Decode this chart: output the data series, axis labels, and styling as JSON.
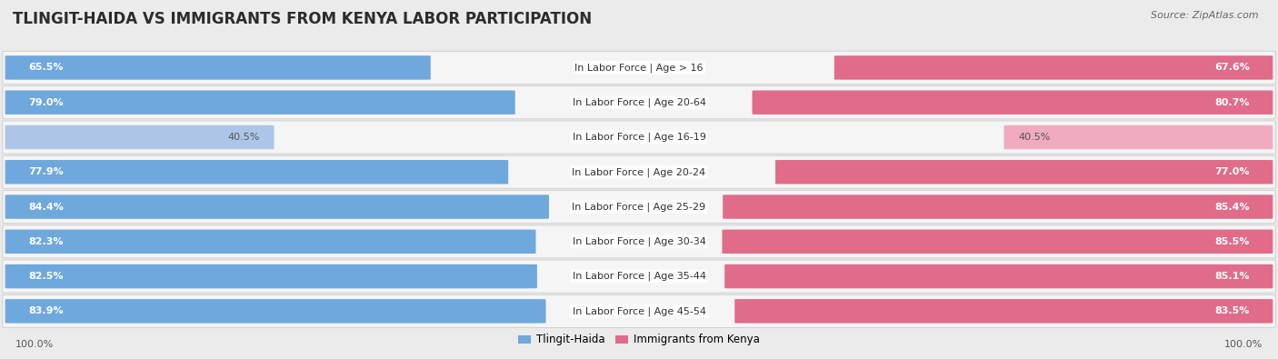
{
  "title": "TLINGIT-HAIDA VS IMMIGRANTS FROM KENYA LABOR PARTICIPATION",
  "source": "Source: ZipAtlas.com",
  "categories": [
    "In Labor Force | Age > 16",
    "In Labor Force | Age 20-64",
    "In Labor Force | Age 16-19",
    "In Labor Force | Age 20-24",
    "In Labor Force | Age 25-29",
    "In Labor Force | Age 30-34",
    "In Labor Force | Age 35-44",
    "In Labor Force | Age 45-54"
  ],
  "tlingit_values": [
    65.5,
    79.0,
    40.5,
    77.9,
    84.4,
    82.3,
    82.5,
    83.9
  ],
  "kenya_values": [
    67.6,
    80.7,
    40.5,
    77.0,
    85.4,
    85.5,
    85.1,
    83.5
  ],
  "tlingit_color": "#6fa8dc",
  "tlingit_color_light": "#adc6e8",
  "kenya_color": "#e06c8a",
  "kenya_color_light": "#f0abbe",
  "background_color": "#ebebeb",
  "row_bg_color": "#f5f5f5",
  "row_edge_color": "#d0d0d0",
  "title_fontsize": 12,
  "label_fontsize": 8,
  "value_fontsize": 8,
  "legend_fontsize": 8.5,
  "footer_fontsize": 8
}
